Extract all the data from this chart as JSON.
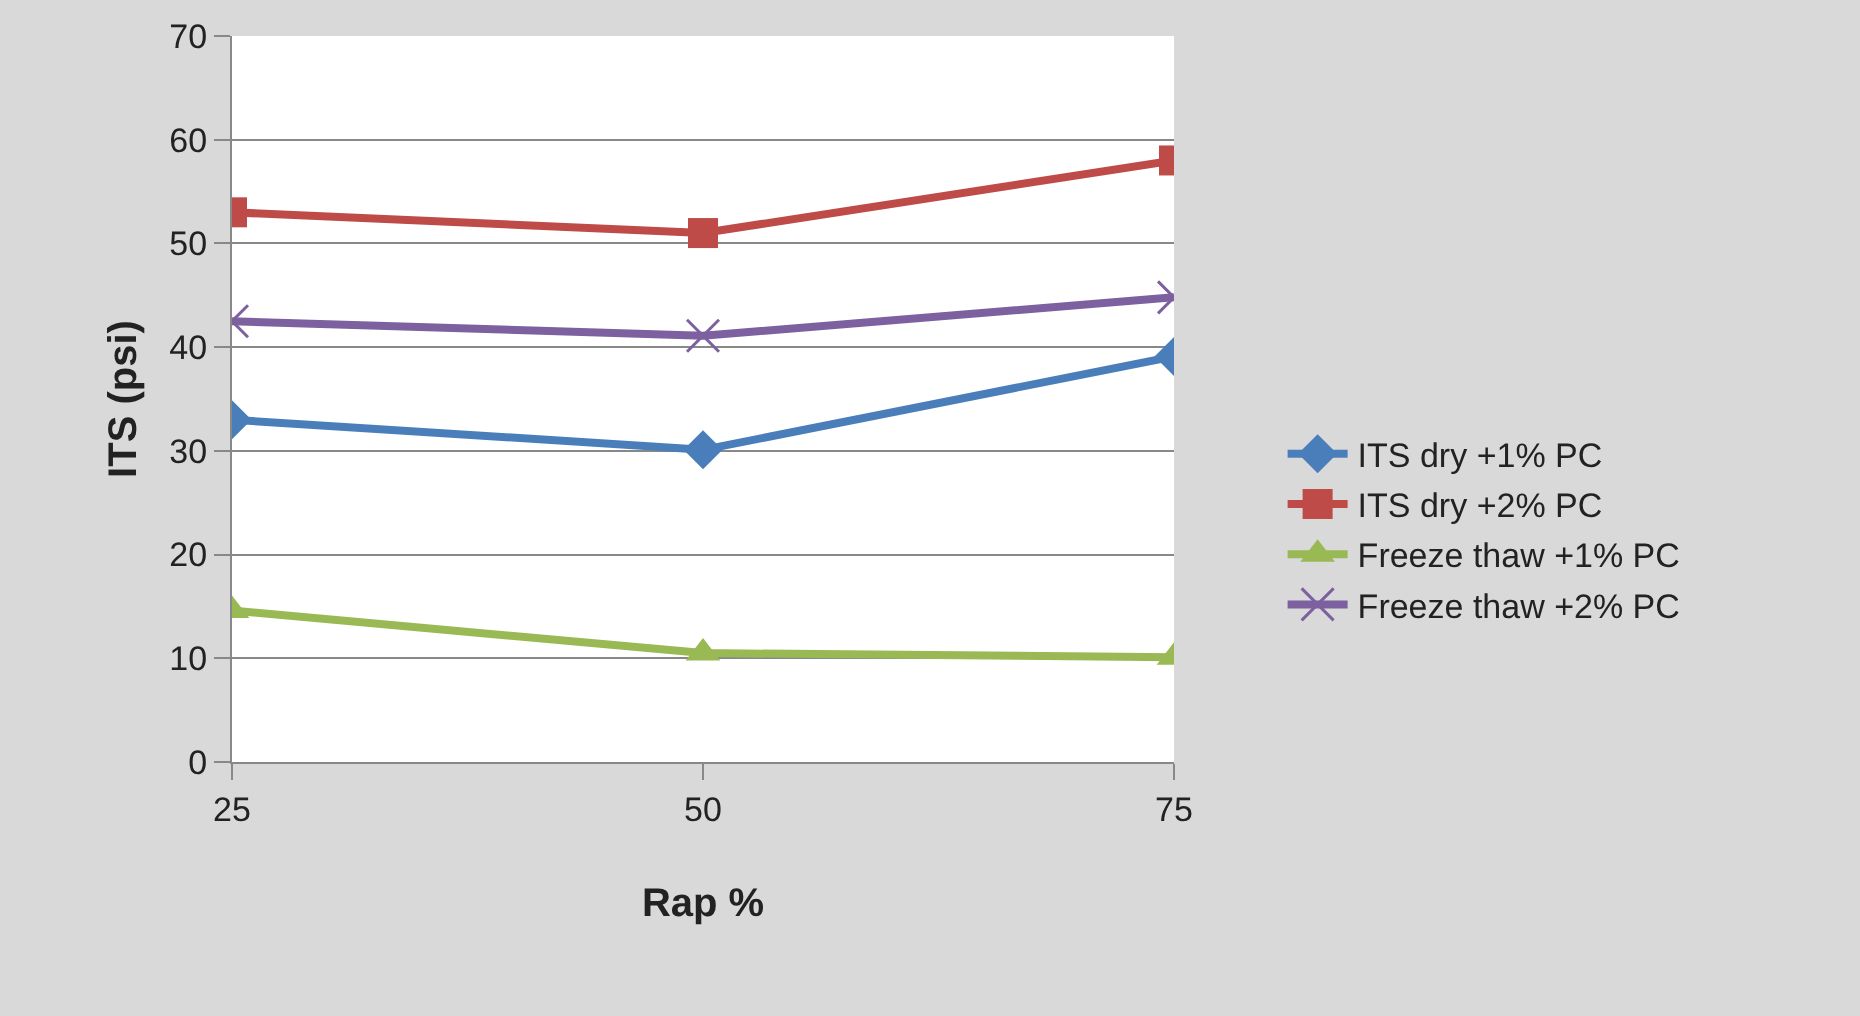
{
  "chart_data": {
    "type": "line",
    "xlabel": "Rap %",
    "ylabel": "ITS (psi)",
    "categories": [
      "25",
      "50",
      "75"
    ],
    "series": [
      {
        "name": "ITS dry +1% PC",
        "color": "#4a7ebb",
        "marker": "diamond",
        "values": [
          33,
          30.1,
          39.1
        ]
      },
      {
        "name": "ITS dry +2% PC",
        "color": "#be4b48",
        "marker": "square",
        "values": [
          53,
          51,
          58
        ]
      },
      {
        "name": "Freeze thaw +1% PC",
        "color": "#98b954",
        "marker": "triangle",
        "values": [
          14.6,
          10.5,
          10.1
        ]
      },
      {
        "name": "Freeze thaw +2% PC",
        "color": "#7d60a0",
        "marker": "cross",
        "values": [
          42.5,
          41.1,
          44.8
        ]
      }
    ],
    "ylim": [
      0,
      70
    ],
    "yticks": [
      0,
      10,
      20,
      30,
      40,
      50,
      60,
      70
    ],
    "grid": "y",
    "legend": "right"
  }
}
